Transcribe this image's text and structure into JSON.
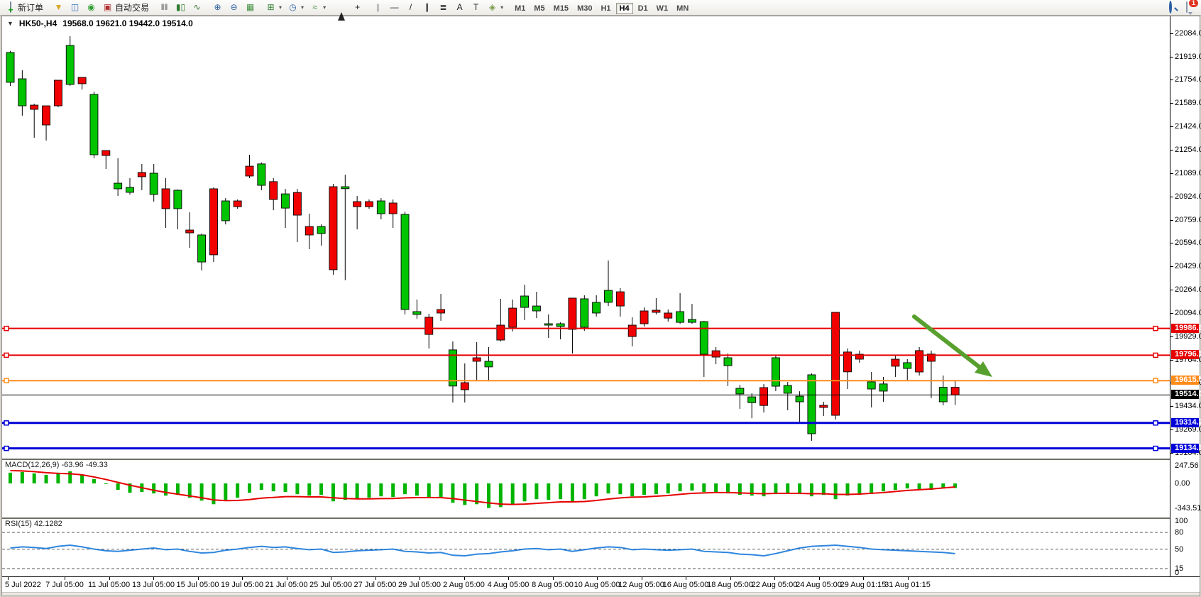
{
  "toolbar": {
    "new_order_label": "新订单",
    "autotrade_label": "自动交易",
    "timeframes": [
      "M1",
      "M5",
      "M15",
      "M30",
      "H1",
      "H4",
      "D1",
      "W1",
      "MN"
    ],
    "active_timeframe": "H4",
    "chat_badge": "1",
    "items": [
      {
        "name": "new-order-button",
        "icon": "doc-plus-icon",
        "label": "新订单"
      },
      {
        "sep": true
      },
      {
        "name": "styler-button",
        "icon": "funnel-icon"
      },
      {
        "name": "profile-window-button",
        "icon": "window-icon"
      },
      {
        "name": "signals-button",
        "icon": "signal-icon"
      },
      {
        "name": "autotrade-button",
        "icon": "autotrade-icon",
        "label": "自动交易"
      },
      {
        "sep": true
      },
      {
        "name": "bar-chart-button",
        "icon": "bars-icon"
      },
      {
        "name": "candlestick-button",
        "icon": "candles-icon"
      },
      {
        "name": "line-chart-button",
        "icon": "linechart-icon"
      },
      {
        "sep": true
      },
      {
        "name": "zoom-in-button",
        "icon": "zoom-in-icon"
      },
      {
        "name": "zoom-out-button",
        "icon": "zoom-out-icon"
      },
      {
        "name": "tile-windows-button",
        "icon": "tile-icon"
      },
      {
        "sep": true
      },
      {
        "name": "new-chart-button",
        "icon": "new-chart-icon",
        "dropdown": true
      },
      {
        "name": "profiles-button",
        "icon": "clock-icon",
        "dropdown": true
      },
      {
        "name": "indicators-button",
        "icon": "indicator-icon",
        "dropdown": true
      },
      {
        "sep": true
      },
      {
        "name": "cursor-button",
        "icon": "cursor-icon"
      },
      {
        "name": "crosshair-button",
        "icon": "crosshair-icon"
      },
      {
        "sep": true
      },
      {
        "name": "vertical-line-button",
        "icon": "vline-icon"
      },
      {
        "name": "horizontal-line-button",
        "icon": "hline-icon"
      },
      {
        "name": "trendline-button",
        "icon": "trendline-icon"
      },
      {
        "name": "channel-button",
        "icon": "channel-icon"
      },
      {
        "name": "fibonacci-button",
        "icon": "fibo-icon"
      },
      {
        "name": "text-button",
        "icon": "text-icon"
      },
      {
        "name": "text-label-button",
        "icon": "label-icon"
      },
      {
        "name": "arrows-button",
        "icon": "arrows-icon",
        "dropdown": true
      },
      {
        "sep": true
      }
    ],
    "icons": {
      "doc-plus-icon": {
        "css": "i-doc"
      },
      "funnel-icon": {
        "glyph": "▼",
        "color": "#d9a520"
      },
      "window-icon": {
        "glyph": "◫",
        "color": "#3b6fba"
      },
      "signal-icon": {
        "glyph": "◉",
        "color": "#2f9e2f"
      },
      "autotrade-icon": {
        "glyph": "▣",
        "color": "#b03030"
      },
      "bars-icon": {
        "glyph": "‖‖",
        "color": "#555"
      },
      "candles-icon": {
        "glyph": "▮▯",
        "color": "#2f7d2f"
      },
      "linechart-icon": {
        "glyph": "∿",
        "color": "#356f35"
      },
      "zoom-in-icon": {
        "glyph": "⊕",
        "color": "#2b5fa3"
      },
      "zoom-out-icon": {
        "glyph": "⊖",
        "color": "#2b5fa3"
      },
      "tile-icon": {
        "glyph": "▦",
        "color": "#3f8f3f"
      },
      "new-chart-icon": {
        "glyph": "⊞",
        "color": "#2f7d2f"
      },
      "clock-icon": {
        "glyph": "◷",
        "color": "#2b5fa3"
      },
      "indicator-icon": {
        "glyph": "≈",
        "color": "#2f7d2f"
      },
      "cursor-icon": {
        "css": "i-cursor"
      },
      "crosshair-icon": {
        "glyph": "+",
        "color": "#222"
      },
      "vline-icon": {
        "glyph": "|",
        "color": "#222"
      },
      "hline-icon": {
        "glyph": "—",
        "color": "#222"
      },
      "trendline-icon": {
        "glyph": "/",
        "color": "#222"
      },
      "channel-icon": {
        "glyph": "∥",
        "color": "#222"
      },
      "fibo-icon": {
        "glyph": "≣",
        "color": "#222"
      },
      "text-icon": {
        "glyph": "A",
        "color": "#222"
      },
      "label-icon": {
        "glyph": "T",
        "color": "#222"
      },
      "arrows-icon": {
        "glyph": "◈",
        "color": "#7a9a4a"
      },
      "search-icon": {
        "css": "i-search"
      },
      "chat-icon": {
        "css": "i-chat"
      }
    }
  },
  "chart": {
    "header": {
      "collapse": "▼",
      "symbol": "HK50-,H4",
      "ohlc": "19568.0 19621.0 19442.0 19514.0"
    },
    "price_ticks": [
      "22084.0",
      "21919.0",
      "21754.0",
      "21589.0",
      "21424.0",
      "21254.0",
      "21089.0",
      "20924.0",
      "20759.0",
      "20594.0",
      "20429.0",
      "20264.0",
      "20094.0",
      "19929.0",
      "19764.0",
      "19599.0",
      "19434.0",
      "19269.0",
      "19104.0"
    ],
    "time_labels": [
      "5 Jul 2022",
      "7 Jul 05:00",
      "11 Jul 05:00",
      "13 Jul 05:00",
      "15 Jul 05:00",
      "19 Jul 05:00",
      "21 Jul 05:00",
      "25 Jul 05:00",
      "27 Jul 05:00",
      "29 Jul 05:00",
      "2 Aug 05:00",
      "4 Aug 05:00",
      "8 Aug 05:00",
      "10 Aug 05:00",
      "12 Aug 05:00",
      "16 Aug 05:00",
      "18 Aug 05:00",
      "22 Aug 05:00",
      "24 Aug 05:00",
      "29 Aug 01:15",
      "31 Aug 01:15"
    ],
    "macd_label": {
      "name": "MACD(12,26,9)",
      "values": "-63.96 -49.33",
      "axis": [
        "247.56",
        "0.00",
        "-343.51"
      ]
    },
    "rsi_label": {
      "name": "RSI(15)",
      "value": "42.1282",
      "axis": [
        "100",
        "80",
        "50",
        "15",
        "0"
      ]
    }
  },
  "chart_data": {
    "type": "candlestick",
    "symbol": "HK50-",
    "timeframe": "H4",
    "title": "HK50-,H4",
    "last_bar": {
      "open": 19568.0,
      "high": 19621.0,
      "low": 19442.0,
      "close": 19514.0
    },
    "bull_color": "#00c400",
    "bear_color": "#f20000",
    "wick_color": "#000000",
    "ylim": [
      19104,
      22084
    ],
    "horizontal_levels": [
      {
        "price": 19986.6,
        "label": "19986.6",
        "color": "#e60000",
        "width": 2,
        "handles": true
      },
      {
        "price": 19796.1,
        "label": "19796.1",
        "color": "#e60000",
        "width": 2,
        "handles": true
      },
      {
        "price": 19615.5,
        "label": "19615.5",
        "color": "#ff8c1a",
        "width": 2,
        "handles": true
      },
      {
        "price": 19514.0,
        "label": "19514.0",
        "color": "#000000",
        "width": 1,
        "handles": false
      },
      {
        "price": 19314.7,
        "label": "19314.7",
        "color": "#0000d9",
        "width": 3,
        "handles": true
      },
      {
        "price": 19134.1,
        "label": "19134.1",
        "color": "#0000d9",
        "width": 3,
        "handles": true
      }
    ],
    "annotation_arrow": {
      "from_price": 19950,
      "to_price": 19560,
      "color": "#58a02e",
      "note": "down-sloping trend arrow in right blank area"
    },
    "candles": [
      [
        21736,
        21960,
        21710,
        21948
      ],
      [
        21569,
        21822,
        21499,
        21761
      ],
      [
        21574,
        21584,
        21342,
        21544
      ],
      [
        21569,
        21569,
        21322,
        21433
      ],
      [
        21751,
        21751,
        21559,
        21569
      ],
      [
        21721,
        22064,
        21711,
        21998
      ],
      [
        21771,
        21771,
        21685,
        21726
      ],
      [
        21221,
        21670,
        21196,
        21650
      ],
      [
        21251,
        21251,
        21120,
        21216
      ],
      [
        20979,
        21196,
        20928,
        21019
      ],
      [
        20954,
        21055,
        20938,
        20989
      ],
      [
        21095,
        21156,
        20969,
        21065
      ],
      [
        20939,
        21156,
        20888,
        21090
      ],
      [
        20979,
        21055,
        20701,
        20838
      ],
      [
        20838,
        20974,
        20691,
        20969
      ],
      [
        20686,
        20812,
        20560,
        20666
      ],
      [
        20459,
        20661,
        20399,
        20651
      ],
      [
        20979,
        20989,
        20459,
        20510
      ],
      [
        20752,
        20913,
        20726,
        20893
      ],
      [
        20893,
        20903,
        20837,
        20852
      ],
      [
        21140,
        21221,
        21055,
        21070
      ],
      [
        21004,
        21166,
        20969,
        21156
      ],
      [
        21030,
        21055,
        20827,
        20903
      ],
      [
        20842,
        20978,
        20701,
        20943
      ],
      [
        20953,
        20978,
        20600,
        20792
      ],
      [
        20711,
        20802,
        20550,
        20651
      ],
      [
        20661,
        20726,
        20575,
        20711
      ],
      [
        20994,
        21014,
        20368,
        20404
      ],
      [
        20980,
        21080,
        20330,
        20994
      ],
      [
        20888,
        20928,
        20691,
        20852
      ],
      [
        20888,
        20903,
        20837,
        20852
      ],
      [
        20802,
        20913,
        20762,
        20893
      ],
      [
        20878,
        20903,
        20701,
        20802
      ],
      [
        20121,
        20817,
        20086,
        20797
      ],
      [
        20086,
        20192,
        20056,
        20106
      ],
      [
        20066,
        20091,
        19844,
        19944
      ],
      [
        20121,
        20232,
        20041,
        20096
      ],
      [
        19577,
        19894,
        19460,
        19834
      ],
      [
        19601,
        19738,
        19460,
        19551
      ],
      [
        19778,
        19889,
        19616,
        19753
      ],
      [
        19713,
        19854,
        19611,
        19753
      ],
      [
        20010,
        20197,
        19894,
        19904
      ],
      [
        20131,
        20192,
        19965,
        19995
      ],
      [
        20136,
        20298,
        20045,
        20217
      ],
      [
        20111,
        20247,
        20060,
        20146
      ],
      [
        20010,
        20086,
        19919,
        20020
      ],
      [
        20000,
        20030,
        19909,
        20020
      ],
      [
        20202,
        20202,
        19808,
        19980
      ],
      [
        19995,
        20222,
        19970,
        20197
      ],
      [
        20096,
        20222,
        20071,
        20172
      ],
      [
        20172,
        20469,
        20146,
        20257
      ],
      [
        20247,
        20273,
        20071,
        20146
      ],
      [
        20010,
        20066,
        19859,
        19929
      ],
      [
        20111,
        20136,
        20000,
        20020
      ],
      [
        20116,
        20202,
        20086,
        20101
      ],
      [
        20096,
        20121,
        20035,
        20060
      ],
      [
        20030,
        20237,
        20020,
        20106
      ],
      [
        20030,
        20161,
        20020,
        20050
      ],
      [
        19803,
        20040,
        19642,
        20035
      ],
      [
        19828,
        19854,
        19732,
        19783
      ],
      [
        19722,
        19808,
        19576,
        19778
      ],
      [
        19521,
        19586,
        19415,
        19561
      ],
      [
        19459,
        19525,
        19348,
        19500
      ],
      [
        19566,
        19591,
        19389,
        19439
      ],
      [
        19576,
        19793,
        19541,
        19778
      ],
      [
        19526,
        19606,
        19405,
        19581
      ],
      [
        19465,
        19540,
        19314,
        19505
      ],
      [
        19238,
        19667,
        19188,
        19657
      ],
      [
        19440,
        19465,
        19364,
        19425
      ],
      [
        20101,
        20101,
        19339,
        19369
      ],
      [
        19819,
        19844,
        19556,
        19678
      ],
      [
        19803,
        19829,
        19743,
        19768
      ],
      [
        19556,
        19677,
        19425,
        19607
      ],
      [
        19541,
        19642,
        19465,
        19592
      ],
      [
        19768,
        19793,
        19642,
        19718
      ],
      [
        19702,
        19768,
        19617,
        19743
      ],
      [
        19829,
        19854,
        19652,
        19677
      ],
      [
        19804,
        19829,
        19491,
        19753
      ],
      [
        19465,
        19652,
        19440,
        19568
      ],
      [
        19568,
        19621,
        19442,
        19514
      ]
    ],
    "macd": {
      "params": [
        12,
        26,
        9
      ],
      "hist_current": -63.96,
      "signal_current": -49.33,
      "ylim": [
        -343.51,
        247.56
      ],
      "hist": [
        150,
        160,
        140,
        120,
        150,
        170,
        120,
        60,
        -10,
        -90,
        -130,
        -120,
        -140,
        -170,
        -160,
        -200,
        -240,
        -290,
        -230,
        -200,
        -130,
        -90,
        -110,
        -120,
        -150,
        -170,
        -160,
        -250,
        -230,
        -220,
        -200,
        -180,
        -190,
        -150,
        -170,
        -200,
        -190,
        -270,
        -300,
        -290,
        -343,
        -330,
        -300,
        -250,
        -220,
        -230,
        -220,
        -260,
        -220,
        -180,
        -140,
        -150,
        -180,
        -160,
        -150,
        -140,
        -110,
        -100,
        -120,
        -130,
        -140,
        -160,
        -170,
        -180,
        -150,
        -140,
        -150,
        -180,
        -160,
        -220,
        -170,
        -140,
        -130,
        -110,
        -90,
        -70,
        -80,
        -90,
        -70,
        -64
      ],
      "signal": [
        180,
        175,
        165,
        150,
        140,
        135,
        120,
        90,
        55,
        15,
        -25,
        -60,
        -95,
        -125,
        -150,
        -175,
        -200,
        -230,
        -240,
        -238,
        -225,
        -205,
        -195,
        -185,
        -185,
        -188,
        -188,
        -200,
        -210,
        -215,
        -215,
        -212,
        -210,
        -202,
        -198,
        -198,
        -198,
        -212,
        -232,
        -252,
        -272,
        -288,
        -293,
        -288,
        -278,
        -268,
        -258,
        -258,
        -252,
        -238,
        -218,
        -202,
        -192,
        -188,
        -178,
        -168,
        -152,
        -138,
        -133,
        -128,
        -128,
        -133,
        -138,
        -143,
        -138,
        -138,
        -138,
        -143,
        -143,
        -153,
        -153,
        -148,
        -138,
        -128,
        -113,
        -98,
        -88,
        -78,
        -63,
        -49
      ],
      "hist_color": "#00b400",
      "signal_color": "#e60000"
    },
    "rsi": {
      "period": 15,
      "current": 42.1282,
      "ylim": [
        0,
        100
      ],
      "levels": [
        80,
        50,
        15
      ],
      "color": "#2e86de",
      "series": [
        52,
        54,
        53,
        51,
        55,
        57,
        54,
        50,
        47,
        46,
        48,
        50,
        52,
        49,
        50,
        46,
        43,
        44,
        48,
        50,
        53,
        55,
        53,
        54,
        51,
        49,
        50,
        44,
        45,
        47,
        48,
        49,
        50,
        46,
        45,
        43,
        44,
        39,
        38,
        41,
        42,
        45,
        47,
        50,
        51,
        49,
        50,
        46,
        49,
        52,
        54,
        53,
        49,
        50,
        49,
        48,
        49,
        50,
        46,
        45,
        44,
        41,
        40,
        38,
        42,
        47,
        52,
        55,
        56,
        57,
        55,
        53,
        50,
        49,
        48,
        47,
        46,
        45,
        44,
        42
      ]
    }
  }
}
